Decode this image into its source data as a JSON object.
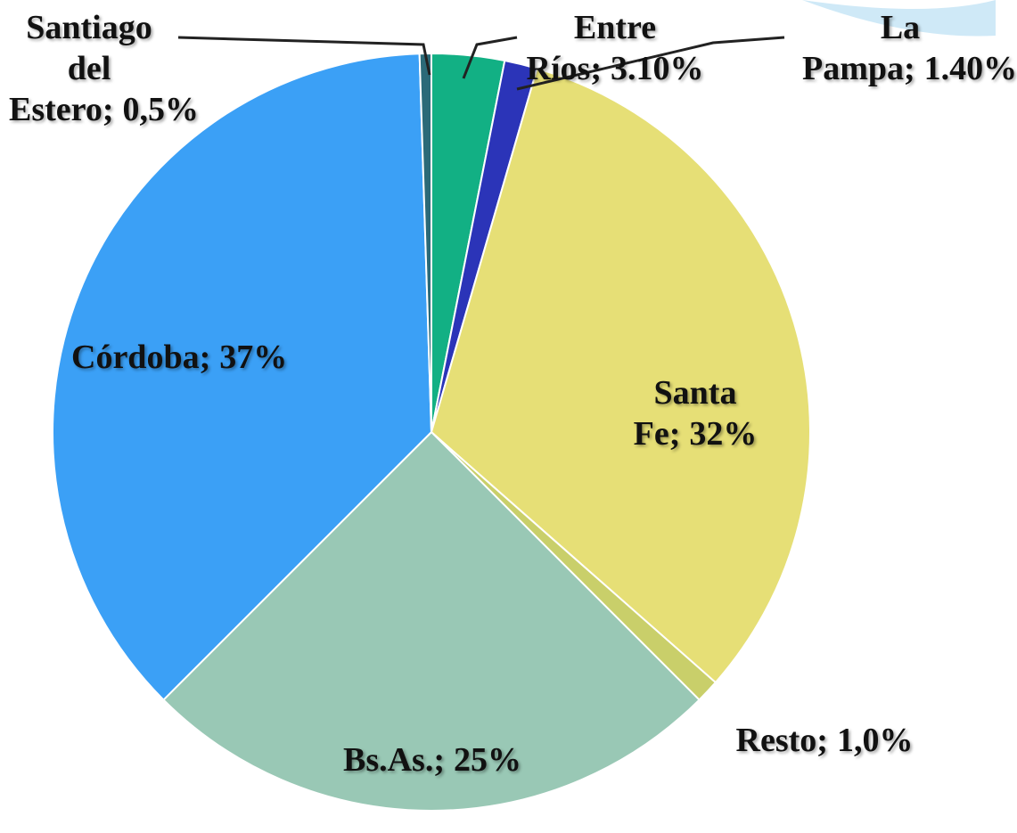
{
  "chart_data": {
    "type": "pie",
    "categories": [
      "Entre Ríos",
      "La Pampa",
      "Santa Fe",
      "Resto",
      "Bs.As.",
      "Córdoba",
      "Santiago del Estero"
    ],
    "values": [
      3.1,
      1.4,
      32,
      1.0,
      25,
      37,
      0.5
    ],
    "value_labels": [
      "3.10%",
      "1.40%",
      "32%",
      "1,0%",
      "25%",
      "37%",
      "0,5%"
    ],
    "label_separator": ";",
    "colors": [
      "#12b084",
      "#2b34b8",
      "#e6df76",
      "#c9cf6a",
      "#99c8b5",
      "#3ba0f6",
      "#2b6a78"
    ]
  }
}
